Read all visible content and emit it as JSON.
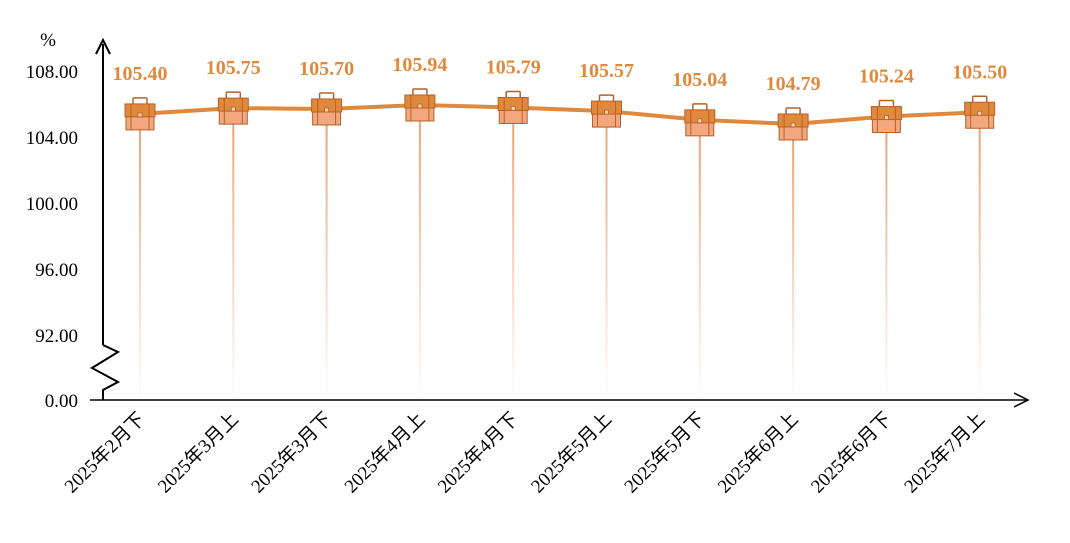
{
  "chart_data": {
    "type": "line",
    "unit": "%",
    "categories": [
      "2025年2月下",
      "2025年3月上",
      "2025年3月下",
      "2025年4月上",
      "2025年4月下",
      "2025年5月上",
      "2025年5月下",
      "2025年6月上",
      "2025年6月下",
      "2025年7月上"
    ],
    "series": [
      {
        "values": [
          105.4,
          105.75,
          105.7,
          105.94,
          105.79,
          105.57,
          105.04,
          104.79,
          105.24,
          105.5
        ],
        "labels": [
          "105.40",
          "105.75",
          "105.70",
          "105.94",
          "105.79",
          "105.57",
          "105.04",
          "104.79",
          "105.24",
          "105.50"
        ]
      }
    ],
    "y_ticks": [
      "108.00",
      "104.00",
      "100.00",
      "96.00",
      "92.00",
      "0.00"
    ],
    "ylim": [
      92,
      108
    ],
    "axis_break": true,
    "grid": false,
    "marker": "briefcase-icon",
    "colors": {
      "line": "#E0883C",
      "label": "#E0883C",
      "marker_top": "#E0883C",
      "marker_bottom": "#F2A77E",
      "marker_edge": "#B5622A",
      "stem": "#E8A070"
    }
  }
}
